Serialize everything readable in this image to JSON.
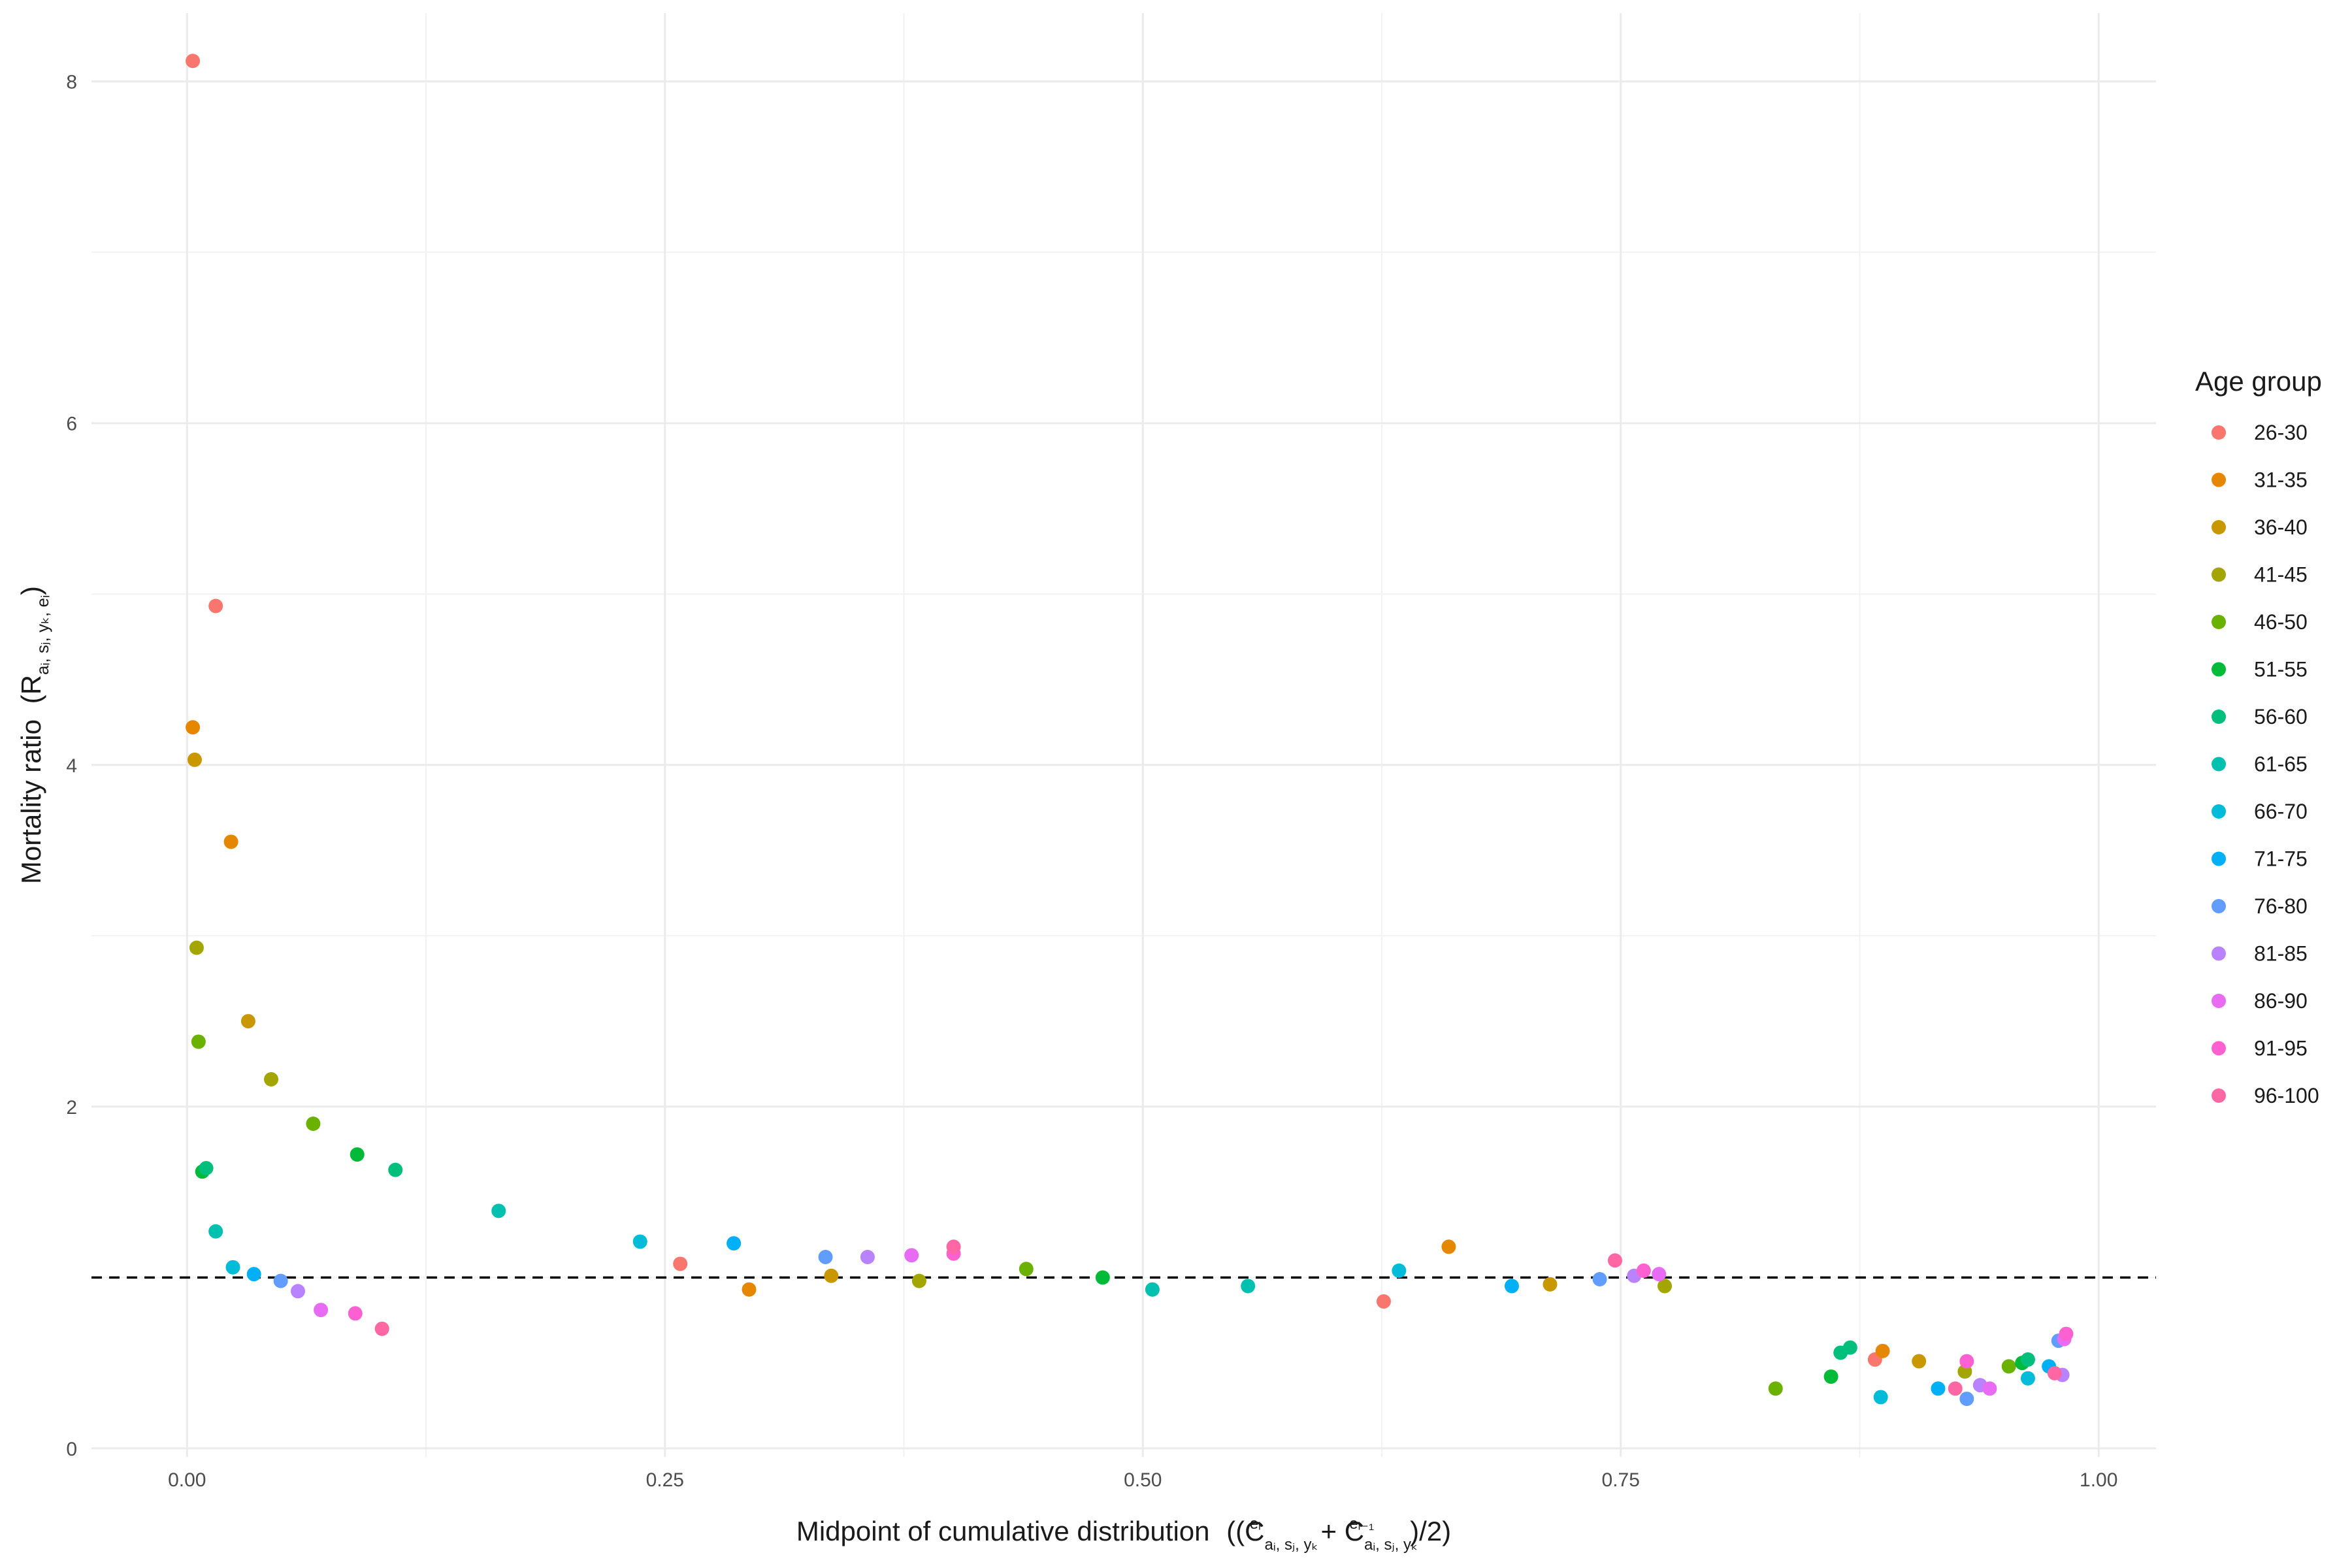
{
  "chart_data": {
    "type": "scatter",
    "xlabel": "Midpoint of cumulative distribution",
    "ylabel": "Mortality ratio",
    "xlim": [
      -0.05,
      1.03
    ],
    "ylim": [
      -0.05,
      8.4
    ],
    "x_ticks": [
      0.0,
      0.25,
      0.5,
      0.75,
      1.0
    ],
    "x_tick_labels": [
      "0.00",
      "0.25",
      "0.50",
      "0.75",
      "1.00"
    ],
    "y_ticks": [
      0,
      2,
      4,
      6,
      8
    ],
    "y_tick_labels": [
      "0",
      "2",
      "4",
      "6",
      "8"
    ],
    "reference_line": {
      "y": 1,
      "style": "dashed"
    },
    "grid": true,
    "legend": {
      "title": "Age group",
      "position": "right"
    },
    "series": [
      {
        "name": "26-30",
        "color": "#F8766D",
        "points": [
          [
            0.003,
            8.12
          ],
          [
            0.015,
            4.93
          ],
          [
            0.258,
            1.08
          ],
          [
            0.626,
            0.86
          ],
          [
            0.883,
            0.52
          ]
        ]
      },
      {
        "name": "31-35",
        "color": "#E58700",
        "points": [
          [
            0.003,
            4.22
          ],
          [
            0.023,
            3.55
          ],
          [
            0.294,
            0.93
          ],
          [
            0.66,
            1.18
          ],
          [
            0.887,
            0.57
          ]
        ]
      },
      {
        "name": "36-40",
        "color": "#C99800",
        "points": [
          [
            0.004,
            4.03
          ],
          [
            0.032,
            2.5
          ],
          [
            0.337,
            1.01
          ],
          [
            0.713,
            0.96
          ],
          [
            0.906,
            0.51
          ]
        ]
      },
      {
        "name": "41-45",
        "color": "#A3A500",
        "points": [
          [
            0.005,
            2.93
          ],
          [
            0.044,
            2.16
          ],
          [
            0.383,
            0.98
          ],
          [
            0.773,
            0.95
          ],
          [
            0.93,
            0.45
          ]
        ]
      },
      {
        "name": "46-50",
        "color": "#6BB100",
        "points": [
          [
            0.006,
            2.38
          ],
          [
            0.066,
            1.9
          ],
          [
            0.439,
            1.05
          ],
          [
            0.831,
            0.35
          ],
          [
            0.953,
            0.48
          ]
        ]
      },
      {
        "name": "51-55",
        "color": "#00BA38",
        "points": [
          [
            0.008,
            1.62
          ],
          [
            0.089,
            1.72
          ],
          [
            0.479,
            1.0
          ],
          [
            0.86,
            0.42
          ],
          [
            0.96,
            0.5
          ]
        ]
      },
      {
        "name": "56-60",
        "color": "#00BF7D",
        "points": [
          [
            0.01,
            1.64
          ],
          [
            0.109,
            1.63
          ],
          [
            0.865,
            0.56
          ],
          [
            0.87,
            0.59
          ],
          [
            0.963,
            0.52
          ]
        ]
      },
      {
        "name": "61-65",
        "color": "#00C0AF",
        "points": [
          [
            0.015,
            1.27
          ],
          [
            0.163,
            1.39
          ],
          [
            0.505,
            0.93
          ],
          [
            0.555,
            0.95
          ]
        ]
      },
      {
        "name": "66-70",
        "color": "#00BCD8",
        "points": [
          [
            0.024,
            1.06
          ],
          [
            0.237,
            1.21
          ],
          [
            0.634,
            1.04
          ],
          [
            0.886,
            0.3
          ],
          [
            0.963,
            0.41
          ]
        ]
      },
      {
        "name": "71-75",
        "color": "#00B0F6",
        "points": [
          [
            0.035,
            1.02
          ],
          [
            0.286,
            1.2
          ],
          [
            0.693,
            0.95
          ],
          [
            0.916,
            0.35
          ],
          [
            0.974,
            0.48
          ]
        ]
      },
      {
        "name": "76-80",
        "color": "#619CFF",
        "points": [
          [
            0.049,
            0.98
          ],
          [
            0.334,
            1.12
          ],
          [
            0.739,
            0.99
          ],
          [
            0.931,
            0.29
          ],
          [
            0.979,
            0.63
          ]
        ]
      },
      {
        "name": "81-85",
        "color": "#B983FF",
        "points": [
          [
            0.058,
            0.92
          ],
          [
            0.356,
            1.12
          ],
          [
            0.757,
            1.01
          ],
          [
            0.938,
            0.37
          ],
          [
            0.981,
            0.43
          ]
        ]
      },
      {
        "name": "86-90",
        "color": "#E76BF3",
        "points": [
          [
            0.07,
            0.81
          ],
          [
            0.379,
            1.13
          ],
          [
            0.77,
            1.02
          ],
          [
            0.943,
            0.35
          ],
          [
            0.982,
            0.64
          ]
        ]
      },
      {
        "name": "91-95",
        "color": "#FD61D1",
        "points": [
          [
            0.088,
            0.79
          ],
          [
            0.401,
            1.14
          ],
          [
            0.762,
            1.04
          ],
          [
            0.931,
            0.51
          ],
          [
            0.983,
            0.67
          ]
        ]
      },
      {
        "name": "96-100",
        "color": "#FF67A4",
        "points": [
          [
            0.102,
            0.7
          ],
          [
            0.401,
            1.18
          ],
          [
            0.747,
            1.1
          ],
          [
            0.925,
            0.35
          ],
          [
            0.977,
            0.44
          ]
        ]
      }
    ]
  }
}
